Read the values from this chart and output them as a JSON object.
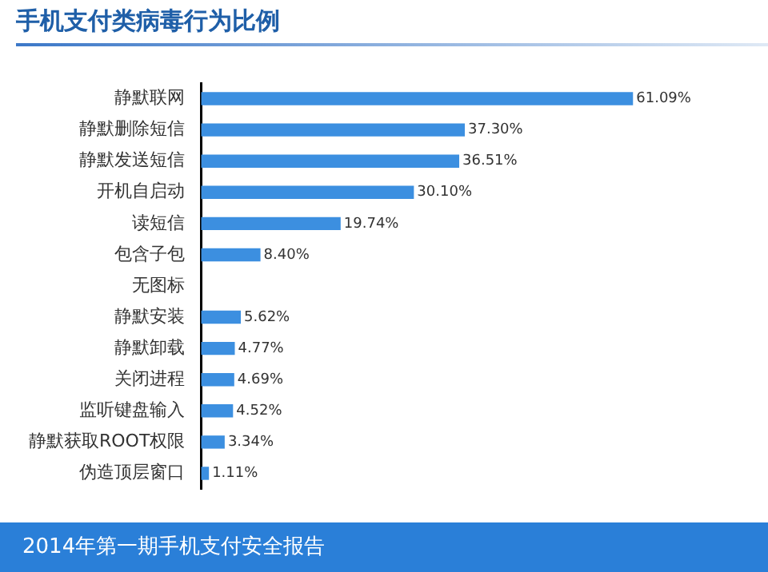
{
  "chart_data": {
    "type": "bar",
    "orientation": "horizontal",
    "title": "手机支付类病毒行为比例",
    "categories": [
      "静默联网",
      "静默删除短信",
      "静默发送短信",
      "开机自启动",
      "读短信",
      "包含子包",
      "无图标",
      "静默安装",
      "静默卸载",
      "关闭进程",
      "监听键盘输入",
      "静默获取ROOT权限",
      "伪造顶层窗口"
    ],
    "values": [
      61.09,
      37.3,
      36.51,
      30.1,
      19.74,
      8.4,
      null,
      5.62,
      4.77,
      4.69,
      4.52,
      3.34,
      1.11
    ],
    "value_labels": [
      "61.09%",
      "37.30%",
      "36.51%",
      "30.10%",
      "19.74%",
      "8.40%",
      null,
      "5.62%",
      "4.77%",
      "4.69%",
      "4.52%",
      "3.34%",
      "1.11%"
    ],
    "color": "#3c8fe0",
    "tick_labels": "y",
    "grid": false,
    "legend": false,
    "annotations": [
      "2014年第一期手机支付安全报告"
    ]
  }
}
